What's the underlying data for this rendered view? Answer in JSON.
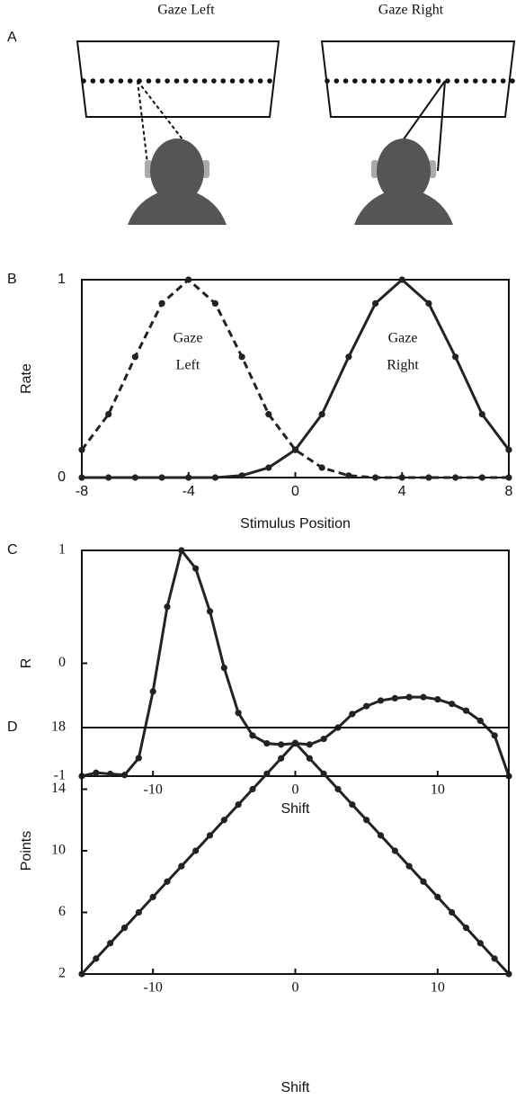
{
  "diagram": {
    "label": "A",
    "titles": [
      "Gaze Left",
      "Gaze Right"
    ]
  },
  "chart_data": [
    {
      "type": "line",
      "label": "B",
      "xlabel": "Stimulus Position",
      "ylabel": "Rate",
      "x": [
        -8,
        -7,
        -6,
        -5,
        -4,
        -3,
        -2,
        -1,
        0,
        1,
        2,
        3,
        4,
        5,
        6,
        7,
        8
      ],
      "series": [
        {
          "color": "#222222",
          "line_style": "dashed",
          "values": [
            0.14,
            0.32,
            0.61,
            0.88,
            1,
            0.88,
            0.61,
            0.32,
            0.14,
            0.05,
            0.01,
            0,
            0,
            0,
            0,
            0,
            0
          ]
        },
        {
          "color": "#222222",
          "line_style": "solid",
          "values": [
            0,
            0,
            0,
            0,
            0,
            0,
            0.01,
            0.05,
            0.14,
            0.32,
            0.61,
            0.88,
            1,
            0.88,
            0.61,
            0.32,
            0.14
          ]
        }
      ],
      "annotations": [
        [
          "Gaze",
          "Left"
        ],
        [
          "Gaze",
          "Right"
        ]
      ],
      "xlim": [
        -8,
        8
      ],
      "ylim": [
        0,
        1
      ],
      "xticks": [
        -8,
        -4,
        0,
        4,
        8
      ],
      "yticks": [
        0,
        1
      ]
    },
    {
      "type": "line",
      "label": "C",
      "xlabel": "Shift",
      "ylabel": "R",
      "x": [
        -15,
        -14,
        -13,
        -12,
        -11,
        -10,
        -9,
        -8,
        -7,
        -6,
        -5,
        -4,
        -3,
        -2,
        -1,
        0,
        1,
        2,
        3,
        4,
        5,
        6,
        7,
        8,
        9,
        10,
        11,
        12,
        13,
        14,
        15
      ],
      "series": [
        {
          "color": "#222222",
          "line_style": "solid",
          "values": [
            -1,
            -0.97,
            -0.98,
            -0.99,
            -0.84,
            -0.25,
            0.5,
            1,
            0.84,
            0.46,
            -0.04,
            -0.44,
            -0.64,
            -0.71,
            -0.72,
            -0.71,
            -0.72,
            -0.67,
            -0.57,
            -0.45,
            -0.38,
            -0.33,
            -0.31,
            -0.3,
            -0.3,
            -0.32,
            -0.36,
            -0.42,
            -0.51,
            -0.64,
            -1
          ]
        }
      ],
      "annotations": [],
      "xlim": [
        -15,
        15
      ],
      "ylim": [
        -1,
        1
      ],
      "xticks": [
        -10,
        0,
        10
      ],
      "yticks": [
        -1,
        0,
        1
      ]
    },
    {
      "type": "line",
      "label": "D",
      "xlabel": "Shift",
      "ylabel": "Points",
      "x": [
        -15,
        -14,
        -13,
        -12,
        -11,
        -10,
        -9,
        -8,
        -7,
        -6,
        -5,
        -4,
        -3,
        -2,
        -1,
        0,
        1,
        2,
        3,
        4,
        5,
        6,
        7,
        8,
        9,
        10,
        11,
        12,
        13,
        14,
        15
      ],
      "series": [
        {
          "color": "#222222",
          "line_style": "solid",
          "values": [
            2,
            3,
            4,
            5,
            6,
            7,
            8,
            9,
            10,
            11,
            12,
            13,
            14,
            15,
            16,
            17,
            16,
            15,
            14,
            13,
            12,
            11,
            10,
            9,
            8,
            7,
            6,
            5,
            4,
            3,
            2
          ]
        }
      ],
      "annotations": [],
      "xlim": [
        -15,
        15
      ],
      "ylim": [
        2,
        18
      ],
      "xticks": [
        -10,
        0,
        10
      ],
      "yticks": [
        2,
        6,
        10,
        14,
        18
      ]
    }
  ]
}
